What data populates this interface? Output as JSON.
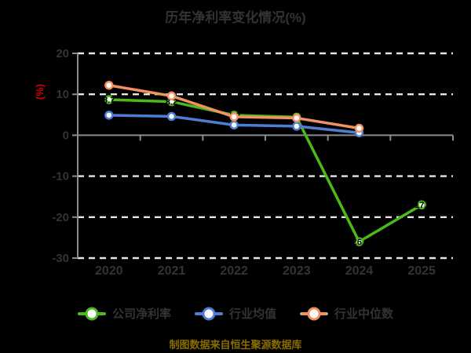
{
  "title": "历年净利率变化情况(%)",
  "footer": "制图数据来自恒生聚源数据库",
  "colors": {
    "background": "#000000",
    "text": "#333333",
    "axis": "#8c8c8c",
    "gridline": "#e6e6e6",
    "ylabel_red": "#d60000",
    "footer_gold": "#8a6d00",
    "point_label": "#000000",
    "marker_fill": "#ffffff"
  },
  "chart_data": {
    "type": "line",
    "title": "历年净利率变化情况(%)",
    "xlabel": "",
    "ylabel": "(%)",
    "categories": [
      "2020",
      "2021",
      "2022",
      "2023",
      "2024",
      "2025"
    ],
    "ylim": [
      -30,
      20
    ],
    "yticks": [
      20,
      10,
      0,
      -10,
      -20,
      -30
    ],
    "grid": "horizontal-dashed",
    "legend_position": "bottom",
    "series": [
      {
        "name": "公司净利率",
        "color": "#4bb919",
        "show_labels": true,
        "values": [
          8.7,
          8.2,
          4.9,
          4.4,
          -26.0,
          -17.0
        ]
      },
      {
        "name": "行业均值",
        "color": "#4d7ed3",
        "show_labels": false,
        "values": [
          4.9,
          4.6,
          2.5,
          2.2,
          0.6,
          null
        ]
      },
      {
        "name": "行业中位数",
        "color": "#f29261",
        "show_labels": false,
        "values": [
          12.2,
          9.6,
          4.5,
          4.2,
          1.7,
          null
        ]
      }
    ]
  }
}
